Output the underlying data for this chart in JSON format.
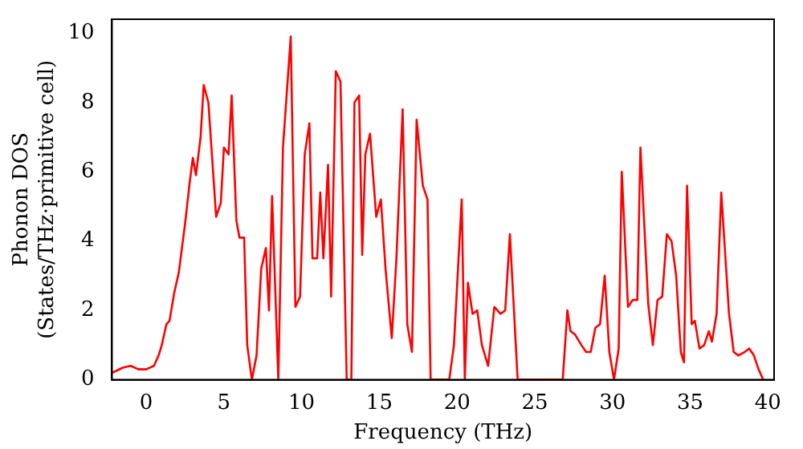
{
  "chart_data": {
    "type": "line",
    "xlabel": "Frequency (THz)",
    "ylabel": "Phonon DOS\n(States/THz·primitive cell)",
    "xlim": [
      -2.2,
      40.4
    ],
    "ylim": [
      0,
      10.4
    ],
    "xticks": [
      0,
      5,
      10,
      15,
      20,
      25,
      30,
      35,
      40
    ],
    "yticks": [
      0,
      2,
      4,
      6,
      8,
      10
    ],
    "grid": false,
    "legend": false,
    "marker": "none",
    "line_style": "solid",
    "series": [
      {
        "color": "#ff0000",
        "x": [
          -2.2,
          -1.5,
          -1,
          -0.5,
          0,
          0.5,
          0.8,
          1,
          1.3,
          1.5,
          1.8,
          2.1,
          2.5,
          2.8,
          3,
          3.2,
          3.5,
          3.7,
          4,
          4.5,
          4.8,
          5,
          5.3,
          5.5,
          5.8,
          6,
          6.3,
          6.5,
          6.8,
          7.1,
          7.4,
          7.7,
          7.9,
          8.1,
          8.5,
          8.8,
          9.3,
          9.6,
          9.9,
          10.2,
          10.5,
          10.7,
          11,
          11.2,
          11.4,
          11.7,
          11.9,
          12.2,
          12.5,
          12.9,
          13.2,
          13.4,
          13.7,
          13.9,
          14.1,
          14.4,
          14.8,
          15.1,
          15.4,
          15.8,
          16.1,
          16.5,
          16.8,
          17.1,
          17.4,
          17.8,
          18.1,
          18.3,
          19.5,
          19.8,
          20.3,
          20.5,
          20.7,
          21,
          21.3,
          21.6,
          22,
          22.4,
          22.8,
          23.1,
          23.4,
          23.9,
          26.8,
          27.1,
          27.3,
          27.6,
          28,
          28.3,
          28.6,
          28.9,
          29.2,
          29.5,
          29.8,
          30.1,
          30.4,
          30.6,
          31,
          31.3,
          31.6,
          31.8,
          32.3,
          32.6,
          32.9,
          33.2,
          33.5,
          33.8,
          34.1,
          34.4,
          34.6,
          34.8,
          35.1,
          35.3,
          35.6,
          35.9,
          36.2,
          36.4,
          36.7,
          37,
          37.5,
          37.8,
          38.1,
          38.5,
          38.8,
          39.1,
          39.4,
          39.7
        ],
        "values": [
          0.2,
          0.35,
          0.4,
          0.3,
          0.3,
          0.4,
          0.7,
          1.0,
          1.6,
          1.7,
          2.5,
          3.1,
          4.5,
          5.7,
          6.4,
          5.9,
          7.0,
          8.5,
          8.0,
          4.7,
          5.1,
          6.7,
          6.5,
          8.2,
          4.6,
          4.1,
          4.1,
          1.0,
          0,
          0.7,
          3.2,
          3.8,
          2.0,
          5.3,
          0,
          6.7,
          9.9,
          2.1,
          2.4,
          6.5,
          7.4,
          3.5,
          3.5,
          5.4,
          3.5,
          6.2,
          2.4,
          8.9,
          8.6,
          0,
          0,
          8.0,
          8.2,
          3.6,
          6.5,
          7.1,
          4.7,
          5.2,
          3.2,
          1.2,
          3.5,
          7.8,
          1.6,
          0.8,
          7.5,
          5.6,
          5.2,
          0,
          0,
          1.0,
          5.2,
          0,
          2.8,
          1.9,
          2.0,
          1.0,
          0.4,
          2.1,
          1.9,
          2.0,
          4.2,
          0,
          0,
          2.0,
          1.4,
          1.3,
          1.0,
          0.8,
          0.8,
          1.5,
          1.6,
          3.0,
          0.8,
          0,
          0.9,
          6.0,
          2.1,
          2.3,
          2.3,
          6.7,
          2.2,
          1.0,
          2.3,
          2.4,
          4.2,
          4.0,
          3.0,
          0.8,
          0.5,
          5.6,
          1.6,
          1.7,
          0.9,
          1.0,
          1.4,
          1.1,
          1.9,
          5.4,
          1.9,
          0.8,
          0.7,
          0.8,
          0.9,
          0.7,
          0.3,
          0
        ]
      }
    ]
  }
}
